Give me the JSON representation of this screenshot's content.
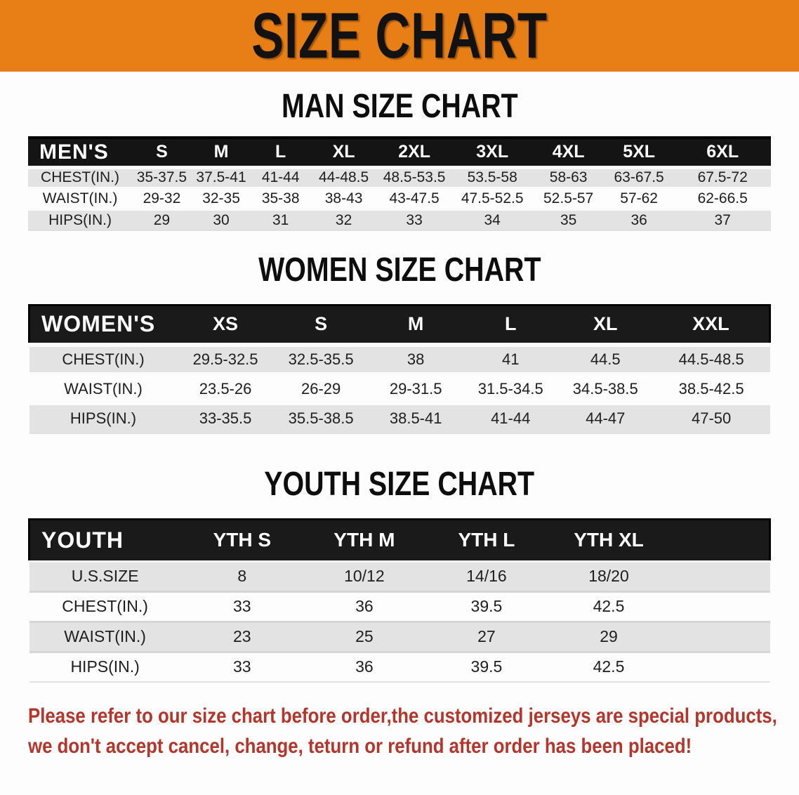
{
  "banner": {
    "title": "SIZE CHART"
  },
  "sections": [
    {
      "id": "men",
      "title": "MAN SIZE CHART",
      "header": [
        "MEN'S",
        "S",
        "M",
        "L",
        "XL",
        "2XL",
        "3XL",
        "4XL",
        "5XL",
        "6XL"
      ],
      "rows": [
        {
          "label": "CHEST(IN.)",
          "values": [
            "35-37.5",
            "37.5-41",
            "41-44",
            "44-48.5",
            "48.5-53.5",
            "53.5-58",
            "58-63",
            "63-67.5",
            "67.5-72"
          ]
        },
        {
          "label": "WAIST(IN.)",
          "values": [
            "29-32",
            "32-35",
            "35-38",
            "38-43",
            "43-47.5",
            "47.5-52.5",
            "52.5-57",
            "57-62",
            "62-66.5"
          ]
        },
        {
          "label": "HIPS(IN.)",
          "values": [
            "29",
            "30",
            "31",
            "32",
            "33",
            "34",
            "35",
            "36",
            "37"
          ]
        }
      ]
    },
    {
      "id": "women",
      "title": "WOMEN SIZE CHART",
      "header": [
        "WOMEN'S",
        "XS",
        "S",
        "M",
        "L",
        "XL",
        "XXL"
      ],
      "rows": [
        {
          "label": "CHEST(IN.)",
          "values": [
            "29.5-32.5",
            "32.5-35.5",
            "38",
            "41",
            "44.5",
            "44.5-48.5"
          ]
        },
        {
          "label": "WAIST(IN.)",
          "values": [
            "23.5-26",
            "26-29",
            "29-31.5",
            "31.5-34.5",
            "34.5-38.5",
            "38.5-42.5"
          ]
        },
        {
          "label": "HIPS(IN.)",
          "values": [
            "33-35.5",
            "35.5-38.5",
            "38.5-41",
            "41-44",
            "44-47",
            "47-50"
          ]
        }
      ]
    },
    {
      "id": "youth",
      "title": "YOUTH SIZE CHART",
      "header": [
        "YOUTH",
        "YTH S",
        "YTH M",
        "YTH L",
        "YTH XL"
      ],
      "rows": [
        {
          "label": "U.S.SIZE",
          "values": [
            "8",
            "10/12",
            "14/16",
            "18/20"
          ]
        },
        {
          "label": "CHEST(IN.)",
          "values": [
            "33",
            "36",
            "39.5",
            "42.5"
          ]
        },
        {
          "label": "WAIST(IN.)",
          "values": [
            "23",
            "25",
            "27",
            "29"
          ]
        },
        {
          "label": "HIPS(IN.)",
          "values": [
            "33",
            "36",
            "39.5",
            "42.5"
          ]
        }
      ]
    }
  ],
  "footer": {
    "line1": "Please refer to our size chart before order,the customized jerseys are special products,",
    "line2": "we don't accept cancel, change, teturn or refund after order has been placed!"
  },
  "colors": {
    "banner_bg": "#E87E16",
    "header_band": "#141414",
    "row_alt": "#E3E3E3",
    "footer_text": "#B2362C"
  }
}
